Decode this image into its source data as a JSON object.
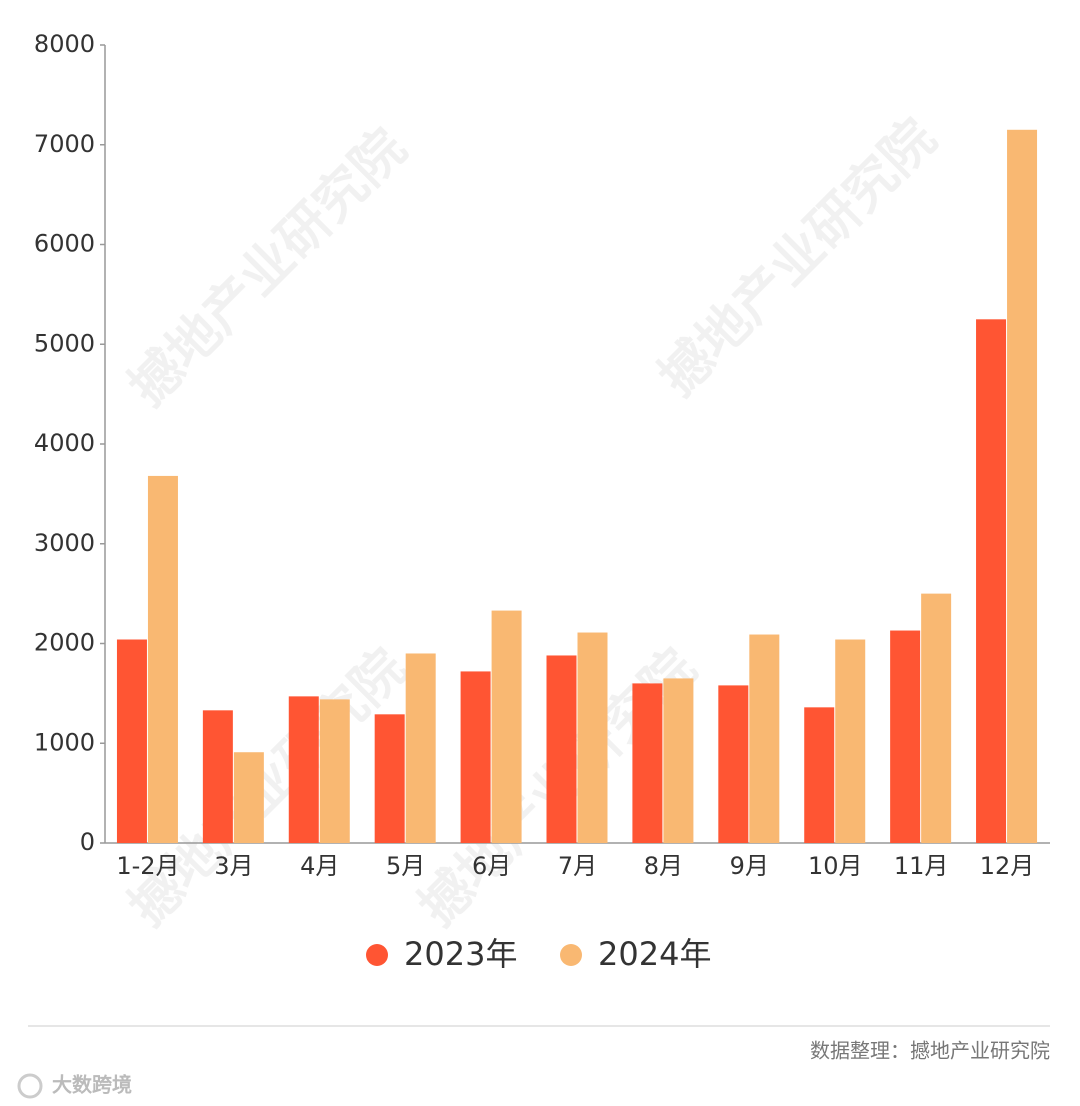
{
  "chart_data": {
    "type": "bar",
    "categories": [
      "1-2月",
      "3月",
      "4月",
      "5月",
      "6月",
      "7月",
      "8月",
      "9月",
      "10月",
      "11月",
      "12月"
    ],
    "series": [
      {
        "name": "2023年",
        "color": "#ff5533",
        "values": [
          2040,
          1330,
          1470,
          1290,
          1720,
          1880,
          1600,
          1580,
          1360,
          2130,
          5250
        ]
      },
      {
        "name": "2024年",
        "color": "#f9b872",
        "values": [
          3680,
          910,
          1440,
          1900,
          2330,
          2110,
          1650,
          2090,
          2040,
          2500,
          7150
        ]
      }
    ],
    "ylim": [
      0,
      8000
    ],
    "yticks": [
      0,
      1000,
      2000,
      3000,
      4000,
      5000,
      6000,
      7000,
      8000
    ],
    "grid": false,
    "legend": "bottom",
    "watermark": "撼地产业研究院",
    "source": "数据整理：撼地产业研究院",
    "logo": "大数跨境"
  }
}
